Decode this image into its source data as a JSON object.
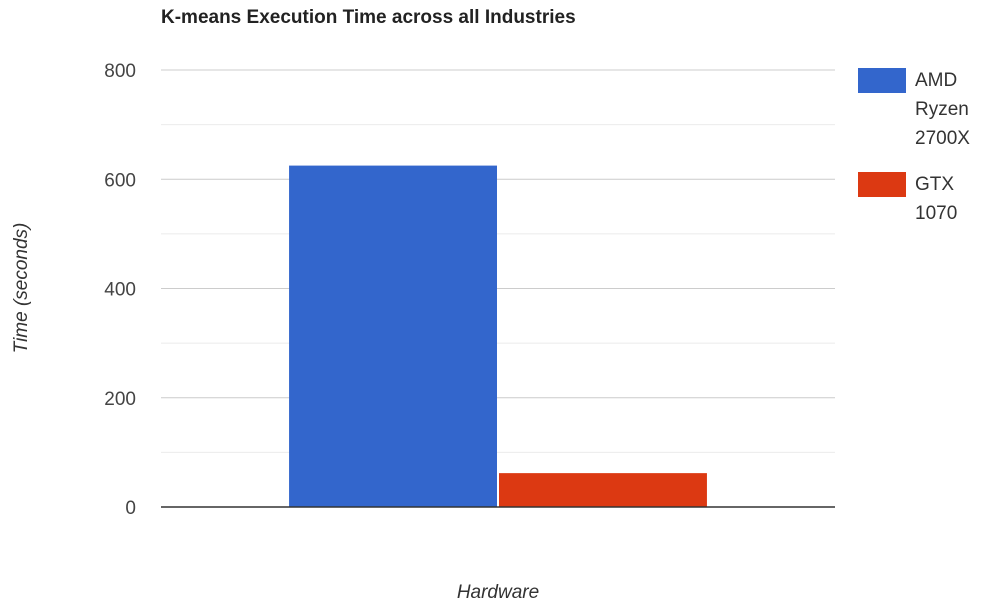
{
  "chart_data": {
    "type": "bar",
    "title": "K-means Execution Time across all Industries",
    "xlabel": "Hardware",
    "ylabel": "Time (seconds)",
    "ylim": [
      0,
      800
    ],
    "yticks": [
      "0",
      "200",
      "400",
      "600",
      "800"
    ],
    "ytick_values": [
      0,
      200,
      400,
      600,
      800
    ],
    "minor_gridlines": [
      100,
      300,
      500,
      700
    ],
    "grid": true,
    "legend_position": "right",
    "categories": [
      ""
    ],
    "series": [
      {
        "name": "AMD Ryzen 2700X",
        "name_lines": [
          "AMD",
          "Ryzen",
          "2700X"
        ],
        "values": [
          625
        ],
        "color": "#3366cc"
      },
      {
        "name": "GTX 1070",
        "name_lines": [
          "GTX",
          "1070"
        ],
        "values": [
          62
        ],
        "color": "#dc3912"
      }
    ]
  }
}
